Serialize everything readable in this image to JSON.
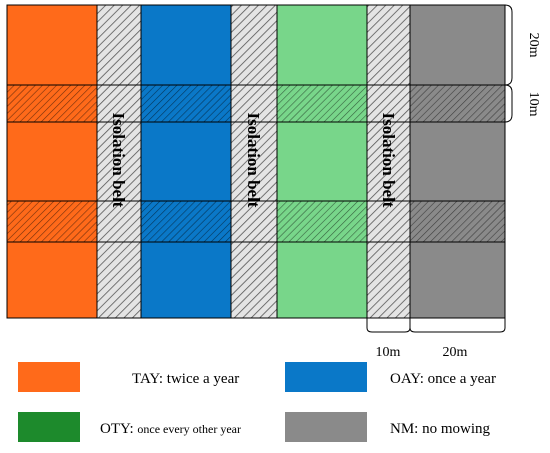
{
  "belts": [
    "Isolation belt",
    "Isolation belt",
    "Isolation belt"
  ],
  "dimensions": {
    "plot_length": "20m",
    "buffer_length": "10m",
    "belt_width": "10m",
    "plot_width": "20m"
  },
  "legend": [
    {
      "label": "TAY: twice a year"
    },
    {
      "label": "OAY: once a year"
    },
    {
      "label": "OTY: once every other year"
    },
    {
      "label": "NM: no mowing"
    }
  ]
}
